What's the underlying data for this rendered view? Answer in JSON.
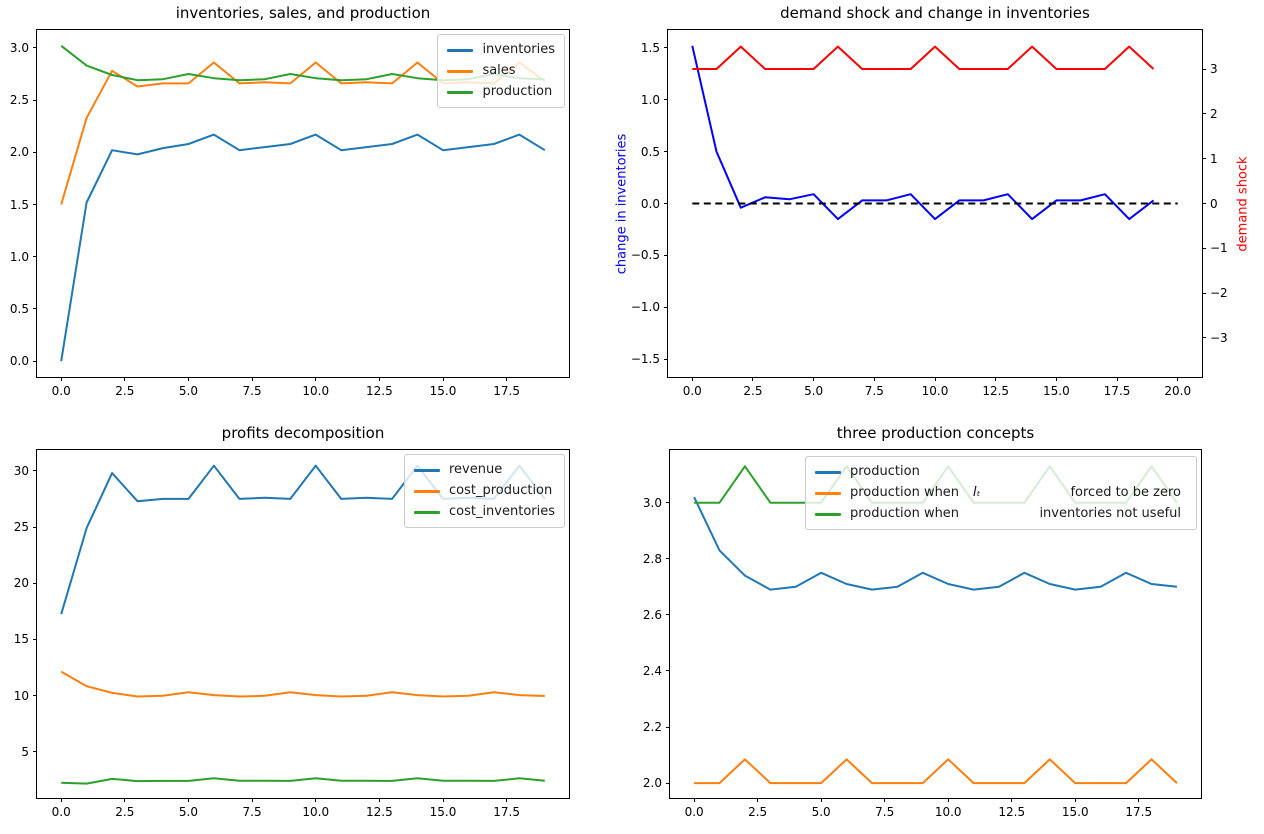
{
  "figure": {
    "background": "#ffffff"
  },
  "chart_data": [
    {
      "id": "inventories-sales-production",
      "type": "line",
      "title": "inventories, sales, and production",
      "x": [
        0,
        1,
        2,
        3,
        4,
        5,
        6,
        7,
        8,
        9,
        10,
        11,
        12,
        13,
        14,
        15,
        16,
        17,
        18,
        19
      ],
      "xlim": [
        -0.95,
        19.95
      ],
      "ylim": [
        -0.151,
        3.171
      ],
      "xtick_values": [
        0,
        2.5,
        5,
        7.5,
        10,
        12.5,
        15,
        17.5
      ],
      "xtick_labels": [
        "0.0",
        "2.5",
        "5.0",
        "7.5",
        "10.0",
        "12.5",
        "15.0",
        "17.5"
      ],
      "ytick_values": [
        0,
        0.5,
        1.0,
        1.5,
        2.0,
        2.5,
        3.0
      ],
      "ytick_labels": [
        "0.0",
        "0.5",
        "1.0",
        "1.5",
        "2.0",
        "2.5",
        "3.0"
      ],
      "grid": false,
      "legend": {
        "position": "upper right",
        "items": [
          {
            "label": "inventories"
          },
          {
            "label": "sales"
          },
          {
            "label": "production"
          }
        ]
      },
      "series": [
        {
          "name": "inventories",
          "color": "#1f77b4",
          "values": [
            0.0,
            1.52,
            2.02,
            1.98,
            2.04,
            2.08,
            2.17,
            2.02,
            2.05,
            2.08,
            2.17,
            2.02,
            2.05,
            2.08,
            2.17,
            2.02,
            2.05,
            2.08,
            2.17,
            2.02
          ]
        },
        {
          "name": "sales",
          "color": "#ff7f0e",
          "values": [
            1.5,
            2.33,
            2.78,
            2.63,
            2.66,
            2.66,
            2.86,
            2.66,
            2.67,
            2.66,
            2.86,
            2.66,
            2.67,
            2.66,
            2.86,
            2.66,
            2.67,
            2.66,
            2.86,
            2.68
          ]
        },
        {
          "name": "production",
          "color": "#2ca02c",
          "values": [
            3.02,
            2.83,
            2.74,
            2.69,
            2.7,
            2.75,
            2.71,
            2.69,
            2.7,
            2.75,
            2.71,
            2.69,
            2.7,
            2.75,
            2.71,
            2.69,
            2.7,
            2.75,
            2.71,
            2.7
          ]
        }
      ]
    },
    {
      "id": "demand-shock-change-in-inventories",
      "type": "line",
      "title": "demand shock and change in inventories",
      "x": [
        0,
        1,
        2,
        3,
        4,
        5,
        6,
        7,
        8,
        9,
        10,
        11,
        12,
        13,
        14,
        15,
        16,
        17,
        18,
        19
      ],
      "xlim": [
        -1,
        21
      ],
      "ylim_left": [
        -1.672,
        1.672
      ],
      "ylim_right": [
        -3.87,
        3.87
      ],
      "ylabel_left": {
        "text": "change in inventories",
        "color": "#0000ff"
      },
      "ylabel_right": {
        "text": "demand shock",
        "color": "#ff0000"
      },
      "xtick_values": [
        0,
        2.5,
        5,
        7.5,
        10,
        12.5,
        15,
        17.5,
        20
      ],
      "xtick_labels": [
        "0.0",
        "2.5",
        "5.0",
        "7.5",
        "10.0",
        "12.5",
        "15.0",
        "17.5",
        "20.0"
      ],
      "ytick_values": [
        1.5,
        1.0,
        0.5,
        0,
        -0.5,
        -1.0,
        -1.5
      ],
      "ytick_labels": [
        "1.5",
        "1.0",
        "0.5",
        "0.0",
        "−0.5",
        "−1.0",
        "−1.5"
      ],
      "ytick_values_right": [
        3,
        2,
        1,
        0,
        -1,
        -2,
        -3
      ],
      "ytick_labels_right": [
        "3",
        "2",
        "1",
        "0",
        "−1",
        "−2",
        "−3"
      ],
      "grid": false,
      "series": [
        {
          "name": "change in inventories",
          "axis": "left",
          "color": "#0000ff",
          "values": [
            1.52,
            0.5,
            -0.04,
            0.06,
            0.04,
            0.09,
            -0.15,
            0.03,
            0.03,
            0.09,
            -0.15,
            0.03,
            0.03,
            0.09,
            -0.15,
            0.03,
            0.03,
            0.09,
            -0.15,
            0.03
          ]
        },
        {
          "name": "demand shock",
          "axis": "right",
          "color": "#ff0000",
          "values": [
            3,
            3,
            3.5,
            3,
            3,
            3,
            3.5,
            3,
            3,
            3,
            3.5,
            3,
            3,
            3,
            3.5,
            3,
            3,
            3,
            3.5,
            3
          ]
        },
        {
          "name": "zero line",
          "axis": "left",
          "color": "#000000",
          "dashed": true,
          "x": [
            0,
            1,
            2,
            3,
            4,
            5,
            6,
            7,
            8,
            9,
            10,
            11,
            12,
            13,
            14,
            15,
            16,
            17,
            18,
            19,
            20
          ],
          "values": [
            0,
            0,
            0,
            0,
            0,
            0,
            0,
            0,
            0,
            0,
            0,
            0,
            0,
            0,
            0,
            0,
            0,
            0,
            0,
            0,
            0
          ]
        }
      ]
    },
    {
      "id": "profits-decomposition",
      "type": "line",
      "title": "profits decomposition",
      "x": [
        0,
        1,
        2,
        3,
        4,
        5,
        6,
        7,
        8,
        9,
        10,
        11,
        12,
        13,
        14,
        15,
        16,
        17,
        18,
        19
      ],
      "xlim": [
        -0.95,
        19.95
      ],
      "ylim": [
        0.9,
        31.85
      ],
      "xtick_values": [
        0,
        2.5,
        5,
        7.5,
        10,
        12.5,
        15,
        17.5
      ],
      "xtick_labels": [
        "0.0",
        "2.5",
        "5.0",
        "7.5",
        "10.0",
        "12.5",
        "15.0",
        "17.5"
      ],
      "ytick_values": [
        5,
        10,
        15,
        20,
        25,
        30
      ],
      "ytick_labels": [
        "5",
        "10",
        "15",
        "20",
        "25",
        "30"
      ],
      "grid": false,
      "legend": {
        "position": "upper right",
        "items": [
          {
            "label": "revenue"
          },
          {
            "label": "cost_production"
          },
          {
            "label": "cost_inventories"
          }
        ]
      },
      "series": [
        {
          "name": "revenue",
          "color": "#1f77b4",
          "values": [
            17.25,
            24.9,
            29.8,
            27.3,
            27.5,
            27.5,
            30.45,
            27.5,
            27.6,
            27.5,
            30.45,
            27.5,
            27.6,
            27.5,
            30.45,
            27.5,
            27.6,
            27.5,
            30.45,
            27.5
          ]
        },
        {
          "name": "cost_production",
          "color": "#ff7f0e",
          "values": [
            12.14,
            10.84,
            10.25,
            9.93,
            9.99,
            10.31,
            10.05,
            9.93,
            9.99,
            10.31,
            10.05,
            9.93,
            9.99,
            10.31,
            10.05,
            9.93,
            9.99,
            10.31,
            10.05,
            9.97
          ]
        },
        {
          "name": "cost_inventories",
          "color": "#2ca02c",
          "values": [
            2.25,
            2.18,
            2.6,
            2.4,
            2.42,
            2.42,
            2.65,
            2.43,
            2.43,
            2.42,
            2.65,
            2.43,
            2.43,
            2.42,
            2.65,
            2.43,
            2.43,
            2.42,
            2.65,
            2.44
          ]
        }
      ]
    },
    {
      "id": "three-production-concepts",
      "type": "line",
      "title": "three production concepts",
      "x": [
        0,
        1,
        2,
        3,
        4,
        5,
        6,
        7,
        8,
        9,
        10,
        11,
        12,
        13,
        14,
        15,
        16,
        17,
        18,
        19
      ],
      "xlim": [
        -0.95,
        19.95
      ],
      "ylim": [
        1.947,
        3.188
      ],
      "xtick_values": [
        0,
        2.5,
        5,
        7.5,
        10,
        12.5,
        15,
        17.5
      ],
      "xtick_labels": [
        "0.0",
        "2.5",
        "5.0",
        "7.5",
        "10.0",
        "12.5",
        "15.0",
        "17.5"
      ],
      "ytick_values": [
        2.0,
        2.2,
        2.4,
        2.6,
        2.8,
        3.0
      ],
      "ytick_labels": [
        "2.0",
        "2.2",
        "2.4",
        "2.6",
        "2.8",
        "3.0"
      ],
      "grid": false,
      "legend": {
        "position": "upper right",
        "items": [
          {
            "label": "production"
          },
          {
            "label": "production when",
            "math": "Iₜ",
            "label2": "forced to be zero"
          },
          {
            "label": "production when",
            "label2": "inventories not useful"
          }
        ]
      },
      "series": [
        {
          "name": "production",
          "color": "#1f77b4",
          "values": [
            3.02,
            2.83,
            2.74,
            2.69,
            2.7,
            2.75,
            2.71,
            2.69,
            2.7,
            2.75,
            2.71,
            2.69,
            2.7,
            2.75,
            2.71,
            2.69,
            2.7,
            2.75,
            2.71,
            2.7
          ]
        },
        {
          "name": "production when inventories forced to be zero",
          "color": "#ff7f0e",
          "values": [
            2.0,
            2.0,
            2.085,
            2.0,
            2.0,
            2.0,
            2.085,
            2.0,
            2.0,
            2.0,
            2.085,
            2.0,
            2.0,
            2.0,
            2.085,
            2.0,
            2.0,
            2.0,
            2.085,
            2.0
          ]
        },
        {
          "name": "production when inventories not useful",
          "color": "#2ca02c",
          "values": [
            3.0,
            3.0,
            3.13,
            3.0,
            3.0,
            3.0,
            3.13,
            3.0,
            3.0,
            3.0,
            3.13,
            3.0,
            3.0,
            3.0,
            3.13,
            3.0,
            3.0,
            3.0,
            3.13,
            3.0
          ]
        }
      ]
    }
  ]
}
